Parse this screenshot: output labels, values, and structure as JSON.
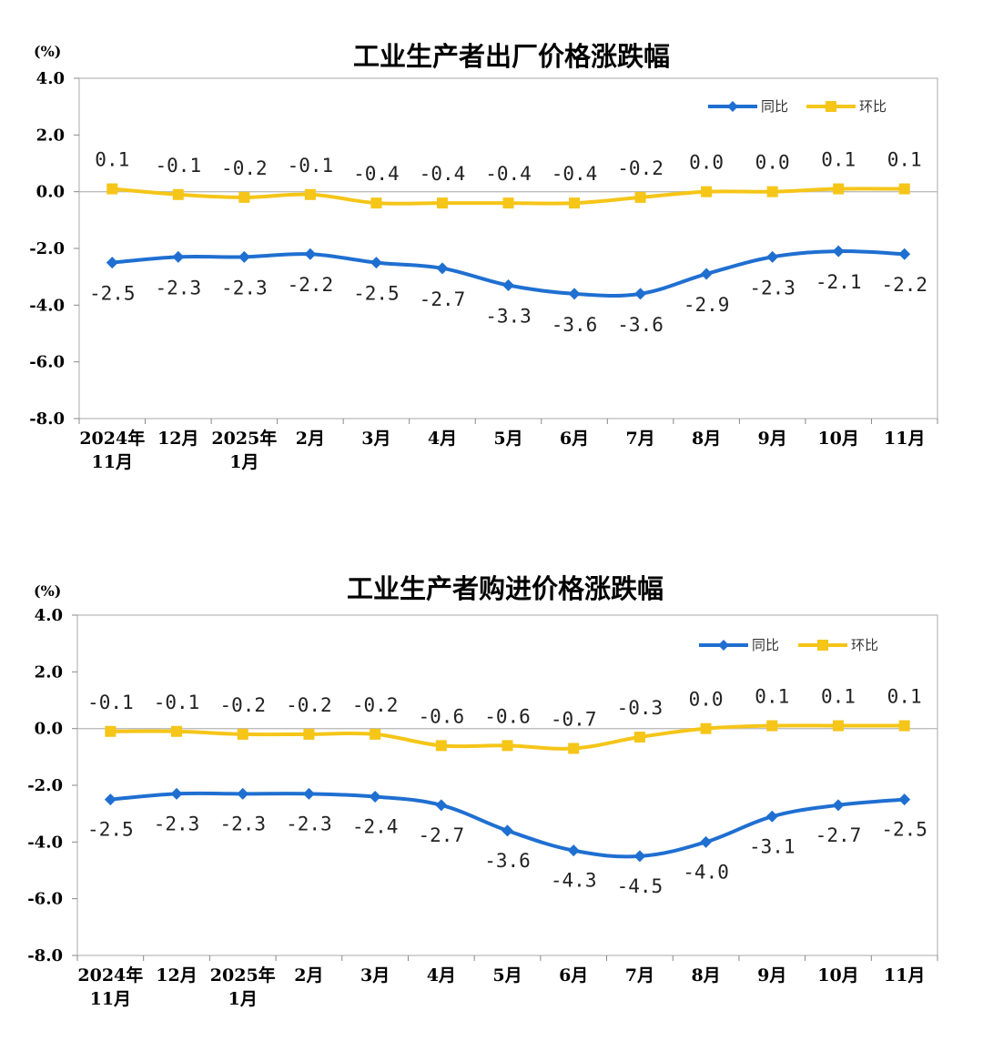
{
  "chart_data": [
    {
      "type": "line",
      "title": "工业生产者出厂价格涨跌幅",
      "unit_label": "(%)",
      "categories": [
        [
          "2024年",
          "11月"
        ],
        [
          "12月"
        ],
        [
          "2025年",
          "1月"
        ],
        [
          "2月"
        ],
        [
          "3月"
        ],
        [
          "4月"
        ],
        [
          "5月"
        ],
        [
          "6月"
        ],
        [
          "7月"
        ],
        [
          "8月"
        ],
        [
          "9月"
        ],
        [
          "10月"
        ],
        [
          "11月"
        ]
      ],
      "ylim": [
        -8.0,
        4.0
      ],
      "yticks": [
        4.0,
        2.0,
        0.0,
        -2.0,
        -4.0,
        -6.0,
        -8.0
      ],
      "ytick_labels": [
        "4.0",
        "2.0",
        "0.0",
        "-2.0",
        "-4.0",
        "-6.0",
        "-8.0"
      ],
      "legend_position": "top-right",
      "series": [
        {
          "name": "同比",
          "color": "#1F6FD1",
          "marker": "diamond",
          "label_position": "below",
          "values": [
            -2.5,
            -2.3,
            -2.3,
            -2.2,
            -2.5,
            -2.7,
            -3.3,
            -3.6,
            -3.6,
            -2.9,
            -2.3,
            -2.1,
            -2.2
          ],
          "labels": [
            "-2.5",
            "-2.3",
            "-2.3",
            "-2.2",
            "-2.5",
            "-2.7",
            "-3.3",
            "-3.6",
            "-3.6",
            "-2.9",
            "-2.3",
            "-2.1",
            "-2.2"
          ]
        },
        {
          "name": "环比",
          "color": "#F5C518",
          "marker": "square",
          "label_position": "above",
          "values": [
            0.1,
            -0.1,
            -0.2,
            -0.1,
            -0.4,
            -0.4,
            -0.4,
            -0.4,
            -0.2,
            0.0,
            0.0,
            0.1,
            0.1
          ],
          "labels": [
            "0.1",
            "-0.1",
            "-0.2",
            "-0.1",
            "-0.4",
            "-0.4",
            "-0.4",
            "-0.4",
            "-0.2",
            "0.0",
            "0.0",
            "0.1",
            "0.1"
          ]
        }
      ]
    },
    {
      "type": "line",
      "title": "工业生产者购进价格涨跌幅",
      "unit_label": "(%)",
      "categories": [
        [
          "2024年",
          "11月"
        ],
        [
          "12月"
        ],
        [
          "2025年",
          "1月"
        ],
        [
          "2月"
        ],
        [
          "3月"
        ],
        [
          "4月"
        ],
        [
          "5月"
        ],
        [
          "6月"
        ],
        [
          "7月"
        ],
        [
          "8月"
        ],
        [
          "9月"
        ],
        [
          "10月"
        ],
        [
          "11月"
        ]
      ],
      "ylim": [
        -8.0,
        4.0
      ],
      "yticks": [
        4.0,
        2.0,
        0.0,
        -2.0,
        -4.0,
        -6.0,
        -8.0
      ],
      "ytick_labels": [
        "4.0",
        "2.0",
        "0.0",
        "-2.0",
        "-4.0",
        "-6.0",
        "-8.0"
      ],
      "legend_position": "top-right",
      "series": [
        {
          "name": "同比",
          "color": "#1F6FD1",
          "marker": "diamond",
          "label_position": "below",
          "values": [
            -2.5,
            -2.3,
            -2.3,
            -2.3,
            -2.4,
            -2.7,
            -3.6,
            -4.3,
            -4.5,
            -4.0,
            -3.1,
            -2.7,
            -2.5
          ],
          "labels": [
            "-2.5",
            "-2.3",
            "-2.3",
            "-2.3",
            "-2.4",
            "-2.7",
            "-3.6",
            "-4.3",
            "-4.5",
            "-4.0",
            "-3.1",
            "-2.7",
            "-2.5"
          ]
        },
        {
          "name": "环比",
          "color": "#F5C518",
          "marker": "square",
          "label_position": "above",
          "values": [
            -0.1,
            -0.1,
            -0.2,
            -0.2,
            -0.2,
            -0.6,
            -0.6,
            -0.7,
            -0.3,
            0.0,
            0.1,
            0.1,
            0.1
          ],
          "labels": [
            "-0.1",
            "-0.1",
            "-0.2",
            "-0.2",
            "-0.2",
            "-0.6",
            "-0.6",
            "-0.7",
            "-0.3",
            "0.0",
            "0.1",
            "0.1",
            "0.1"
          ]
        }
      ]
    }
  ]
}
